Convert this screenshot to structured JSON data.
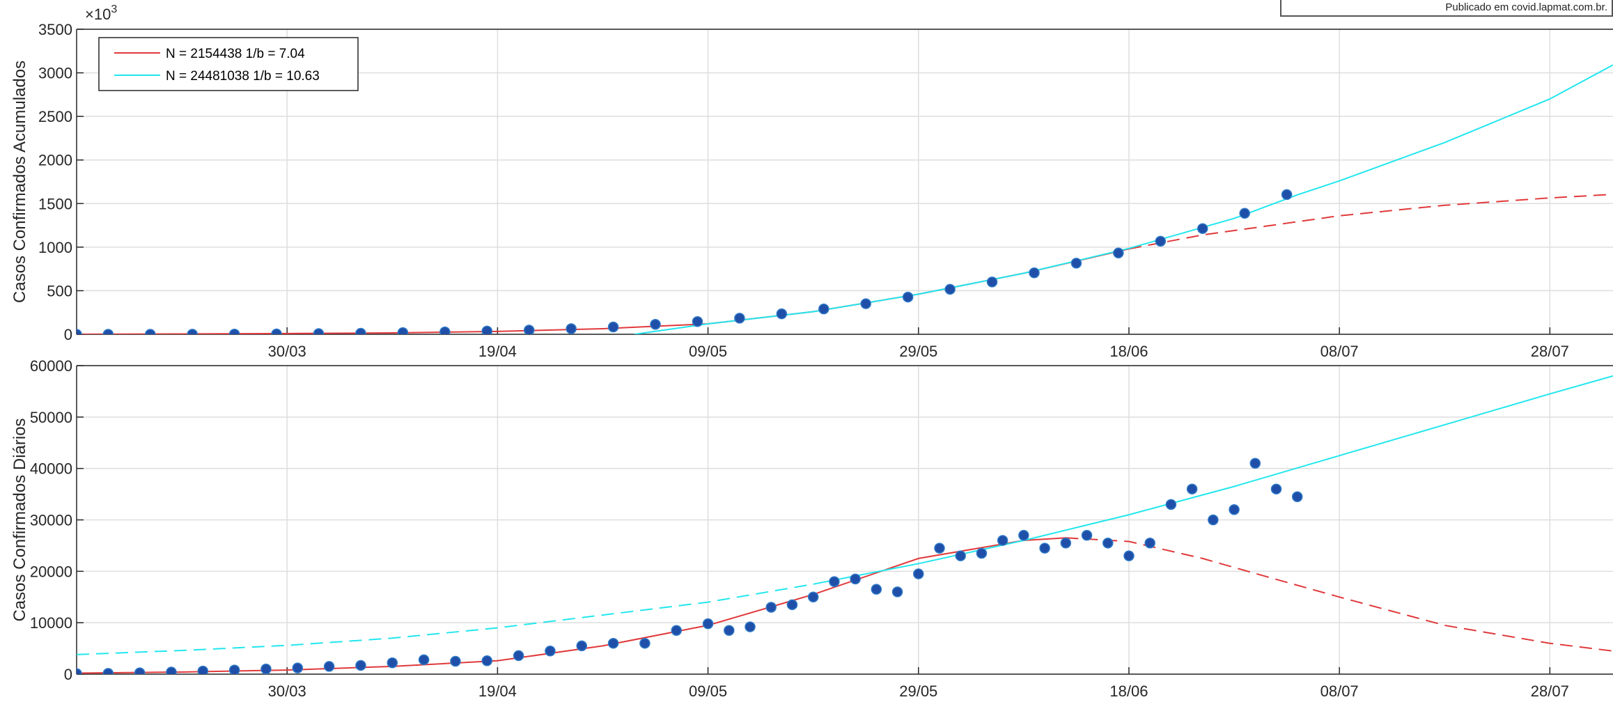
{
  "publication_note": "Publicado em covid.lapmat.com.br.",
  "chart_data": [
    {
      "type": "line",
      "title": "",
      "ylabel": "Casos Confirmados Acumulados",
      "exponent_label": "×10",
      "exponent_power": "3",
      "xlabel": "",
      "ylim": [
        0,
        3500
      ],
      "xlim": [
        "2020-03-10",
        "2020-08-03"
      ],
      "yticks": [
        "0",
        "500",
        "1000",
        "1500",
        "2000",
        "2500",
        "3000",
        "3500"
      ],
      "ytick_values": [
        0,
        500,
        1000,
        1500,
        2000,
        2500,
        3000,
        3500
      ],
      "xticks": [
        "30/03",
        "19/04",
        "09/05",
        "29/05",
        "18/06",
        "08/07",
        "28/07"
      ],
      "xtick_dates": [
        "2020-03-30",
        "2020-04-19",
        "2020-05-09",
        "2020-05-29",
        "2020-06-18",
        "2020-07-08",
        "2020-07-28"
      ],
      "grid": true,
      "legend": {
        "placement": "top-left",
        "entries": [
          {
            "label": "N = 2154438 1/b = 7.04",
            "color": "#e0393b"
          },
          {
            "label": "N = 24481038 1/b = 10.63",
            "color": "#22e6ee"
          }
        ]
      },
      "observed": {
        "x": [
          "2020-03-10",
          "2020-03-13",
          "2020-03-17",
          "2020-03-21",
          "2020-03-25",
          "2020-03-29",
          "2020-04-02",
          "2020-04-06",
          "2020-04-10",
          "2020-04-14",
          "2020-04-18",
          "2020-04-22",
          "2020-04-26",
          "2020-04-30",
          "2020-05-04",
          "2020-05-08",
          "2020-05-12",
          "2020-05-16",
          "2020-05-20",
          "2020-05-24",
          "2020-05-28",
          "2020-06-01",
          "2020-06-05",
          "2020-06-09",
          "2020-06-13",
          "2020-06-17",
          "2020-06-21",
          "2020-06-25",
          "2020-06-29",
          "2020-07-03"
        ],
        "y": [
          0.1,
          0.2,
          0.3,
          0.9,
          2.4,
          4.3,
          7.8,
          12,
          19,
          27,
          37,
          48,
          64,
          84,
          114,
          146,
          185,
          235,
          291,
          351,
          427,
          516,
          600,
          705,
          816,
          933,
          1068,
          1213,
          1388,
          1603
        ]
      },
      "series": [
        {
          "name": "N = 2154438 1/b = 7.04",
          "color": "#e0393b",
          "x": [
            "2020-03-10",
            "2020-03-20",
            "2020-03-30",
            "2020-04-09",
            "2020-04-19",
            "2020-04-29",
            "2020-05-09",
            "2020-05-19",
            "2020-05-29",
            "2020-06-08",
            "2020-06-18",
            "2020-06-25",
            "2020-07-01",
            "2020-07-08",
            "2020-07-18",
            "2020-07-28",
            "2020-08-03"
          ],
          "y": [
            1,
            4,
            9,
            16,
            33,
            64,
            120,
            260,
            460,
            700,
            980,
            1140,
            1240,
            1360,
            1480,
            1565,
            1605
          ],
          "dashed_after": "2020-06-25"
        },
        {
          "name": "N = 24481038 1/b = 10.63",
          "color": "#22e6ee",
          "x": [
            "2020-05-02",
            "2020-05-09",
            "2020-05-19",
            "2020-05-29",
            "2020-06-08",
            "2020-06-18",
            "2020-06-28",
            "2020-07-04",
            "2020-07-08",
            "2020-07-18",
            "2020-07-28",
            "2020-08-03"
          ],
          "y": [
            0,
            120,
            260,
            460,
            700,
            985,
            1330,
            1600,
            1760,
            2200,
            2700,
            3090
          ],
          "dashed_after": null
        }
      ]
    },
    {
      "type": "line",
      "title": "",
      "ylabel": "Casos Confirmados Diários",
      "xlabel": "",
      "ylim": [
        0,
        60000
      ],
      "xlim": [
        "2020-03-10",
        "2020-08-03"
      ],
      "yticks": [
        "0",
        "10000",
        "20000",
        "30000",
        "40000",
        "50000",
        "60000"
      ],
      "ytick_values": [
        0,
        10000,
        20000,
        30000,
        40000,
        50000,
        60000
      ],
      "xticks": [
        "30/03",
        "19/04",
        "09/05",
        "29/05",
        "18/06",
        "08/07",
        "28/07"
      ],
      "xtick_dates": [
        "2020-03-30",
        "2020-04-19",
        "2020-05-09",
        "2020-05-29",
        "2020-06-18",
        "2020-07-08",
        "2020-07-28"
      ],
      "grid": true,
      "observed": {
        "x": [
          "2020-03-10",
          "2020-03-13",
          "2020-03-16",
          "2020-03-19",
          "2020-03-22",
          "2020-03-25",
          "2020-03-28",
          "2020-03-31",
          "2020-04-03",
          "2020-04-06",
          "2020-04-09",
          "2020-04-12",
          "2020-04-15",
          "2020-04-18",
          "2020-04-21",
          "2020-04-24",
          "2020-04-27",
          "2020-04-30",
          "2020-05-03",
          "2020-05-06",
          "2020-05-09",
          "2020-05-11",
          "2020-05-13",
          "2020-05-15",
          "2020-05-17",
          "2020-05-19",
          "2020-05-21",
          "2020-05-23",
          "2020-05-25",
          "2020-05-27",
          "2020-05-29",
          "2020-05-31",
          "2020-06-02",
          "2020-06-04",
          "2020-06-06",
          "2020-06-08",
          "2020-06-10",
          "2020-06-12",
          "2020-06-14",
          "2020-06-16",
          "2020-06-18",
          "2020-06-20",
          "2020-06-22",
          "2020-06-24",
          "2020-06-26",
          "2020-06-28",
          "2020-06-30",
          "2020-07-02",
          "2020-07-04"
        ],
        "y": [
          100,
          150,
          250,
          400,
          600,
          800,
          1000,
          1200,
          1500,
          1700,
          2200,
          2800,
          2500,
          2600,
          3600,
          4500,
          5500,
          6000,
          6000,
          8500,
          9800,
          8500,
          9200,
          13000,
          13500,
          15000,
          18000,
          18500,
          16500,
          16000,
          19500,
          24500,
          23000,
          23500,
          26000,
          27000,
          24500,
          25500,
          27000,
          25500,
          23000,
          25500,
          33000,
          36000,
          30000,
          32000,
          41000,
          36000,
          34500
        ]
      },
      "series": [
        {
          "name": "N = 2154438 1/b = 7.04",
          "color": "#e0393b",
          "x": [
            "2020-03-10",
            "2020-03-20",
            "2020-03-30",
            "2020-04-09",
            "2020-04-19",
            "2020-04-29",
            "2020-05-09",
            "2020-05-19",
            "2020-05-29",
            "2020-06-08",
            "2020-06-12",
            "2020-06-18",
            "2020-06-25",
            "2020-07-01",
            "2020-07-08",
            "2020-07-18",
            "2020-07-28",
            "2020-08-03"
          ],
          "y": [
            200,
            400,
            800,
            1500,
            2600,
            5500,
            9500,
            15500,
            22500,
            26000,
            26500,
            25800,
            22500,
            19000,
            15000,
            9500,
            6000,
            4500
          ],
          "dashed_after": "2020-06-18"
        },
        {
          "name": "N = 24481038 1/b = 10.63",
          "color": "#22e6ee",
          "x": [
            "2020-03-10",
            "2020-03-20",
            "2020-03-30",
            "2020-04-09",
            "2020-04-19",
            "2020-04-29",
            "2020-05-09",
            "2020-05-19",
            "2020-05-29",
            "2020-06-08",
            "2020-06-18",
            "2020-06-28",
            "2020-07-08",
            "2020-07-18",
            "2020-07-28",
            "2020-08-03"
          ],
          "y": [
            3800,
            4600,
            5600,
            7000,
            9000,
            11500,
            14000,
            17500,
            21500,
            26000,
            31000,
            36500,
            42500,
            48500,
            54500,
            58000
          ],
          "dashed_before": "2020-05-19"
        }
      ]
    }
  ]
}
